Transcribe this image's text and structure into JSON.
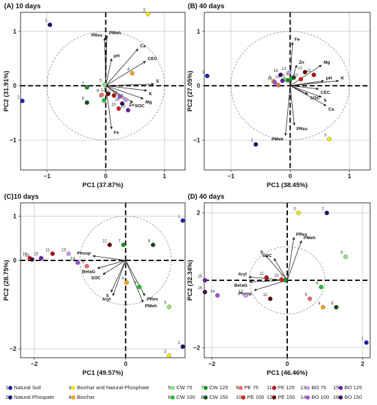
{
  "colors": {
    "natural_soil": "#1f1fb5",
    "natural_phosphate": "#14146e",
    "biochar_np": "#f5e416",
    "biochar": "#f0a21d",
    "cw75": "#8ee27a",
    "cw100": "#27b83a",
    "cw125": "#1e8f2a",
    "cw150": "#0f4d17",
    "pe75": "#f06a6a",
    "pe100": "#e01c1c",
    "pe125": "#b01010",
    "pe150": "#660808",
    "bo75": "#c89ae8",
    "bo100": "#9d4fd6",
    "bo125": "#6a1fa8",
    "bo150": "#3d0f5e"
  },
  "legend": [
    {
      "num": "1",
      "label": "Natural Soil",
      "color": "#1f1fb5"
    },
    {
      "num": "2",
      "label": "Natural Phospate",
      "color": "#14146e"
    },
    {
      "num": "3",
      "label": "Biochar and Natural Phosphate",
      "color": "#f5e416"
    },
    {
      "num": "4",
      "label": "Biochar",
      "color": "#f0a21d"
    },
    {
      "num": "5",
      "label": "CW 75",
      "color": "#8ee27a"
    },
    {
      "num": "6",
      "label": "CW 100",
      "color": "#27b83a"
    },
    {
      "num": "7",
      "label": "CW 125",
      "color": "#1e8f2a"
    },
    {
      "num": "8",
      "label": "CW 150",
      "color": "#0f4d17"
    },
    {
      "num": "9",
      "label": "PE 75",
      "color": "#f06a6a"
    },
    {
      "num": "10",
      "label": "PE 100",
      "color": "#e01c1c"
    },
    {
      "num": "11",
      "label": "PE 125",
      "color": "#b01010"
    },
    {
      "num": "12",
      "label": "PE 150",
      "color": "#660808"
    },
    {
      "num": "13",
      "label": "BO 75",
      "color": "#c89ae8"
    },
    {
      "num": "14",
      "label": "BO 100",
      "color": "#9d4fd6"
    },
    {
      "num": "15",
      "label": "BO 125",
      "color": "#6a1fa8"
    },
    {
      "num": "16",
      "label": "BO 150",
      "color": "#3d0f5e"
    }
  ],
  "chart_data": [
    {
      "type": "scatter",
      "panel": "A",
      "title": "(A) 10 days",
      "xlabel": "PC1 (37.87%)",
      "ylabel": "PC2 (31.91%)",
      "xlim": [
        -1.45,
        1.35
      ],
      "ylim": [
        -1.55,
        1.35
      ],
      "xticks": [
        -1,
        0,
        1
      ],
      "yticks": [
        -1,
        0,
        1
      ],
      "circle_radius": 1,
      "points": [
        {
          "label": "1",
          "x": -1.42,
          "y": -0.28,
          "color": "natural_soil"
        },
        {
          "label": "2",
          "x": -0.95,
          "y": 1.12,
          "color": "natural_phosphate"
        },
        {
          "label": "3",
          "x": 0.72,
          "y": 1.32,
          "color": "biochar_np"
        },
        {
          "label": "4",
          "x": 0.45,
          "y": 0.23,
          "color": "biochar"
        },
        {
          "label": "5",
          "x": -0.02,
          "y": 0.02,
          "color": "cw75"
        },
        {
          "label": "6",
          "x": -0.03,
          "y": -0.27,
          "color": "cw100"
        },
        {
          "label": "7",
          "x": -0.32,
          "y": -0.03,
          "color": "cw125"
        },
        {
          "label": "8",
          "x": -0.32,
          "y": -0.31,
          "color": "cw150"
        },
        {
          "label": "9",
          "x": -0.07,
          "y": -0.17,
          "color": "pe75"
        },
        {
          "label": "10",
          "x": 0.22,
          "y": -0.42,
          "color": "pe100"
        },
        {
          "label": "11",
          "x": 0.14,
          "y": -0.18,
          "color": "pe125"
        },
        {
          "label": "12",
          "x": 0.04,
          "y": -0.15,
          "color": "pe150"
        },
        {
          "label": "13",
          "x": 0.34,
          "y": -0.26,
          "color": "bo75"
        },
        {
          "label": "14",
          "x": 0.24,
          "y": -0.2,
          "color": "bo100"
        },
        {
          "label": "15",
          "x": 0.38,
          "y": -0.45,
          "color": "bo125"
        },
        {
          "label": "16",
          "x": 0.28,
          "y": -0.33,
          "color": "bo150"
        }
      ],
      "vectors": [
        {
          "label": "PRes",
          "x": -0.02,
          "y": 0.88
        },
        {
          "label": "PMeh",
          "x": 0.02,
          "y": 0.92
        },
        {
          "label": "pH",
          "x": 0.1,
          "y": 0.5
        },
        {
          "label": "Ca",
          "x": 0.55,
          "y": 0.68
        },
        {
          "label": "CEC",
          "x": 0.68,
          "y": 0.45
        },
        {
          "label": "S",
          "x": 0.82,
          "y": 0.03
        },
        {
          "label": "K",
          "x": 0.7,
          "y": -0.09
        },
        {
          "label": "Mg",
          "x": 0.64,
          "y": -0.24
        },
        {
          "label": "Zn",
          "x": 0.36,
          "y": -0.29
        },
        {
          "label": "SOC",
          "x": 0.46,
          "y": -0.31
        },
        {
          "label": "Fe",
          "x": 0.1,
          "y": -0.8
        }
      ]
    },
    {
      "type": "scatter",
      "panel": "B",
      "title": "(B) 40 days",
      "xlabel": "PC1 (38.45%)",
      "ylabel": "PC2 (27.05%)",
      "xlim": [
        -1.45,
        1.35
      ],
      "ylim": [
        -1.55,
        1.35
      ],
      "xticks": [
        -1,
        0,
        1
      ],
      "yticks": [
        -1,
        0,
        1
      ],
      "circle_radius": 1,
      "points": [
        {
          "label": "1",
          "x": -1.4,
          "y": 0.18,
          "color": "natural_soil"
        },
        {
          "label": "2",
          "x": -0.58,
          "y": -1.08,
          "color": "natural_phosphate"
        },
        {
          "label": "3",
          "x": 0.66,
          "y": -0.98,
          "color": "biochar_np"
        },
        {
          "label": "4",
          "x": -0.28,
          "y": 0.08,
          "color": "biochar"
        },
        {
          "label": "5",
          "x": -0.1,
          "y": 0.12,
          "color": "cw75"
        },
        {
          "label": "6",
          "x": 0.02,
          "y": 0.14,
          "color": "cw100"
        },
        {
          "label": "7",
          "x": -0.04,
          "y": 0.1,
          "color": "cw125"
        },
        {
          "label": "8",
          "x": 0.06,
          "y": 0.15,
          "color": "cw150"
        },
        {
          "label": "9",
          "x": -0.2,
          "y": 0.01,
          "color": "pe75"
        },
        {
          "label": "10",
          "x": 0.18,
          "y": 0.12,
          "color": "pe100"
        },
        {
          "label": "11",
          "x": 0.4,
          "y": 0.2,
          "color": "pe125"
        },
        {
          "label": "12",
          "x": 0.25,
          "y": 0.25,
          "color": "pe150"
        },
        {
          "label": "13",
          "x": -0.02,
          "y": 0.24,
          "color": "bo75"
        },
        {
          "label": "14",
          "x": -0.26,
          "y": 0.06,
          "color": "bo100"
        },
        {
          "label": "15",
          "x": -0.13,
          "y": 0.09,
          "color": "bo125"
        },
        {
          "label": "16",
          "x": -0.16,
          "y": 0.2,
          "color": "bo150"
        }
      ],
      "vectors": [
        {
          "label": "Fe",
          "x": 0.04,
          "y": 0.8
        },
        {
          "label": "Zn",
          "x": 0.11,
          "y": 0.38
        },
        {
          "label": "Mg",
          "x": 0.53,
          "y": 0.38
        },
        {
          "label": "pH",
          "x": 0.57,
          "y": 0.09
        },
        {
          "label": "K",
          "x": 0.82,
          "y": 0.09
        },
        {
          "label": "CEC",
          "x": 0.48,
          "y": -0.06
        },
        {
          "label": "SOC",
          "x": 0.3,
          "y": -0.16
        },
        {
          "label": "S",
          "x": 0.53,
          "y": -0.21
        },
        {
          "label": "Ca",
          "x": 0.61,
          "y": -0.37
        },
        {
          "label": "PRes",
          "x": 0.07,
          "y": -0.73
        },
        {
          "label": "PMeh",
          "x": -0.08,
          "y": -0.92
        }
      ]
    },
    {
      "type": "scatter",
      "panel": "C",
      "title": "(C)10 days",
      "xlabel": "PC1 (49.57%)",
      "ylabel": "PC2 (28.75%)",
      "xlim": [
        -2.3,
        1.3
      ],
      "ylim": [
        -2.2,
        1.3
      ],
      "xticks": [
        -2,
        0
      ],
      "yticks": [
        -2,
        0,
        1
      ],
      "circle_radius": 1,
      "points": [
        {
          "label": "1",
          "x": 1.25,
          "y": 0.9,
          "color": "natural_soil"
        },
        {
          "label": "2",
          "x": 1.25,
          "y": -1.95,
          "color": "natural_phosphate"
        },
        {
          "label": "3",
          "x": 0.95,
          "y": -2.15,
          "color": "biochar_np"
        },
        {
          "label": "4",
          "x": 0.02,
          "y": -0.5,
          "color": "biochar"
        },
        {
          "label": "5",
          "x": 0.95,
          "y": -1.05,
          "color": "cw75"
        },
        {
          "label": "6",
          "x": 0.3,
          "y": -0.6,
          "color": "cw100"
        },
        {
          "label": "7",
          "x": -0.05,
          "y": 0.35,
          "color": "cw125"
        },
        {
          "label": "8",
          "x": 0.6,
          "y": 0.35,
          "color": "cw150"
        },
        {
          "label": "9",
          "x": -0.85,
          "y": -0.13,
          "color": "pe75"
        },
        {
          "label": "10",
          "x": -2.1,
          "y": 0.05,
          "color": "pe100"
        },
        {
          "label": "11",
          "x": -1.6,
          "y": 0.15,
          "color": "pe125"
        },
        {
          "label": "12",
          "x": -0.35,
          "y": 0.35,
          "color": "pe150"
        },
        {
          "label": "13",
          "x": -1.25,
          "y": 0.15,
          "color": "bo75"
        },
        {
          "label": "14",
          "x": -1.05,
          "y": -0.05,
          "color": "bo100"
        },
        {
          "label": "15",
          "x": -1.85,
          "y": 0.05,
          "color": "bo125"
        },
        {
          "label": "16",
          "x": -2.05,
          "y": 0.02,
          "color": "bo150"
        }
      ],
      "vectors": [
        {
          "label": "Phosp",
          "x": -0.72,
          "y": 0.1
        },
        {
          "label": "BetaG",
          "x": -0.62,
          "y": -0.18
        },
        {
          "label": "SOC",
          "x": -0.5,
          "y": -0.32
        },
        {
          "label": "S",
          "x": -0.32,
          "y": -0.72
        },
        {
          "label": "Aryl",
          "x": -0.28,
          "y": -0.8
        },
        {
          "label": "PRes",
          "x": 0.42,
          "y": -0.8
        },
        {
          "label": "PMeh",
          "x": 0.38,
          "y": -0.95
        }
      ]
    },
    {
      "type": "scatter",
      "panel": "D",
      "title": "(D) 40 days",
      "xlabel": "PC1 (46.46%)",
      "ylabel": "PC2 (32.34%)",
      "xlim": [
        -2.2,
        2.2
      ],
      "ylim": [
        -2.3,
        2.3
      ],
      "xticks": [
        -2,
        0,
        2
      ],
      "yticks": [
        -2,
        2
      ],
      "circle_radius": 1,
      "points": [
        {
          "label": "1",
          "x": 2.1,
          "y": -1.85,
          "color": "natural_soil"
        },
        {
          "label": "2",
          "x": 1.05,
          "y": 2.0,
          "color": "natural_phosphate"
        },
        {
          "label": "3",
          "x": 0.3,
          "y": 2.0,
          "color": "biochar_np"
        },
        {
          "label": "4",
          "x": 0.95,
          "y": -0.8,
          "color": "biochar"
        },
        {
          "label": "5",
          "x": 1.55,
          "y": 0.7,
          "color": "cw75"
        },
        {
          "label": "6",
          "x": 0.9,
          "y": -0.2,
          "color": "cw100"
        },
        {
          "label": "7",
          "x": -0.05,
          "y": 0.0,
          "color": "cw125"
        },
        {
          "label": "8",
          "x": 1.3,
          "y": -0.8,
          "color": "cw150"
        },
        {
          "label": "9",
          "x": 0.6,
          "y": -0.55,
          "color": "pe75"
        },
        {
          "label": "10",
          "x": -0.15,
          "y": 0.02,
          "color": "pe100"
        },
        {
          "label": "11",
          "x": -0.55,
          "y": 0.08,
          "color": "pe125"
        },
        {
          "label": "12",
          "x": -0.45,
          "y": -0.55,
          "color": "pe150"
        },
        {
          "label": "13",
          "x": -1.1,
          "y": -0.45,
          "color": "bo75"
        },
        {
          "label": "14",
          "x": -1.85,
          "y": -0.45,
          "color": "bo100"
        },
        {
          "label": "15",
          "x": -2.2,
          "y": 0.0,
          "color": "bo125"
        },
        {
          "label": "16",
          "x": -2.2,
          "y": -0.35,
          "color": "bo150"
        }
      ],
      "vectors": [
        {
          "label": "PRes",
          "x": 0.18,
          "y": 1.28
        },
        {
          "label": "PMeh",
          "x": 0.38,
          "y": 1.18
        },
        {
          "label": "S",
          "x": -0.58,
          "y": 0.75
        },
        {
          "label": "SOC",
          "x": -0.35,
          "y": 0.65
        },
        {
          "label": "Aryl",
          "x": -1.02,
          "y": 0.1
        },
        {
          "label": "BetaG",
          "x": -1.0,
          "y": -0.05
        },
        {
          "label": "Phosp",
          "x": -0.88,
          "y": -0.3
        }
      ]
    }
  ]
}
